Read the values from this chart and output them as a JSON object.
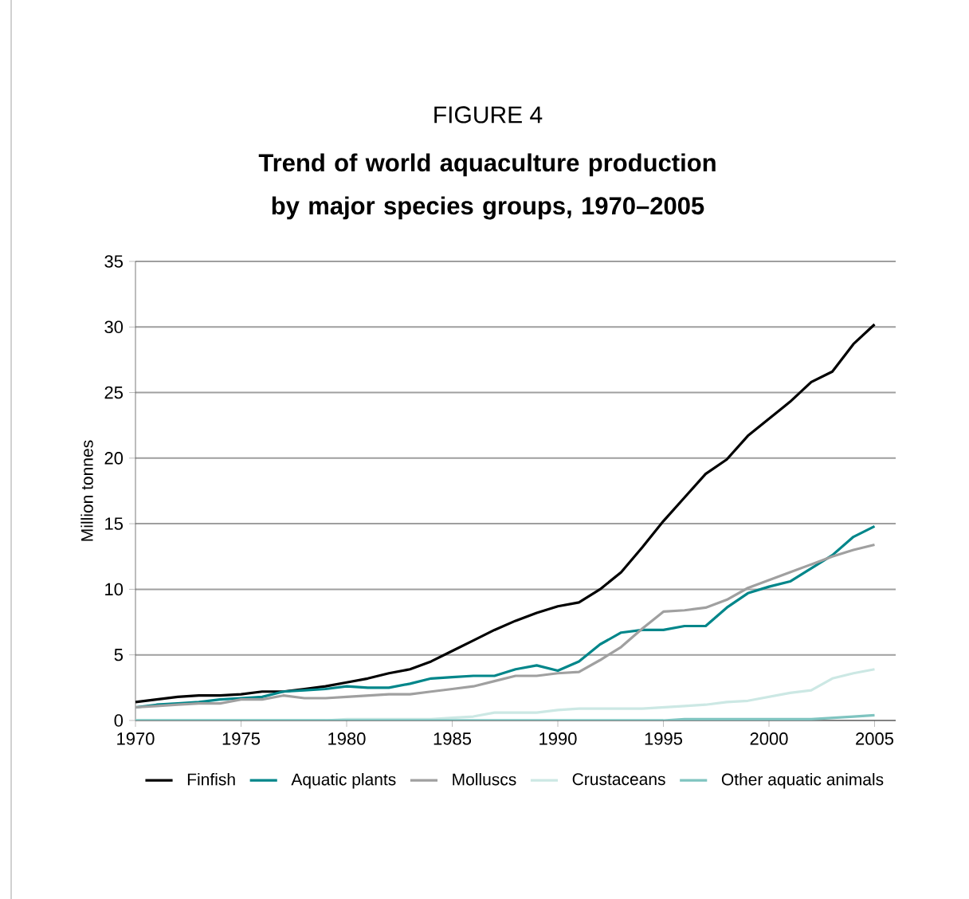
{
  "chart_data": {
    "type": "line",
    "title": "FIGURE 4",
    "subtitle": "**Trend of world aquaculture production by major species groups, 1970–2005**",
    "ylabel": "Million tonnes",
    "x": [
      1970,
      1971,
      1972,
      1973,
      1974,
      1975,
      1976,
      1977,
      1978,
      1979,
      1980,
      1981,
      1982,
      1983,
      1984,
      1985,
      1986,
      1987,
      1988,
      1989,
      1990,
      1991,
      1992,
      1993,
      1994,
      1995,
      1996,
      1997,
      1998,
      1999,
      2000,
      2001,
      2002,
      2003,
      2004,
      2005
    ],
    "xlim": [
      1970,
      2006
    ],
    "xticks": [
      1970,
      1975,
      1980,
      1985,
      1990,
      1995,
      2000,
      2005
    ],
    "ylim": [
      0,
      35
    ],
    "yticks": [
      0,
      5,
      10,
      15,
      20,
      25,
      30,
      35
    ],
    "grid": "y",
    "legend": "bottom",
    "marker": "none",
    "line_style": "solid",
    "series": [
      {
        "name": "Finfish",
        "color": "#000000",
        "values": [
          1.4,
          1.6,
          1.8,
          1.9,
          1.9,
          2.0,
          2.2,
          2.2,
          2.4,
          2.6,
          2.9,
          3.2,
          3.6,
          3.9,
          4.5,
          5.3,
          6.1,
          6.9,
          7.6,
          8.2,
          8.7,
          9.0,
          10.0,
          11.3,
          13.2,
          15.2,
          17.0,
          18.8,
          19.9,
          21.7,
          23.0,
          24.3,
          25.8,
          26.6,
          28.7,
          30.2
        ]
      },
      {
        "name": "Aquatic plants",
        "color": "#00868a",
        "values": [
          1.0,
          1.2,
          1.3,
          1.4,
          1.6,
          1.7,
          1.8,
          2.2,
          2.3,
          2.4,
          2.6,
          2.5,
          2.5,
          2.8,
          3.2,
          3.3,
          3.4,
          3.4,
          3.9,
          4.2,
          3.8,
          4.5,
          5.8,
          6.7,
          6.9,
          6.9,
          7.2,
          7.2,
          8.6,
          9.7,
          10.2,
          10.6,
          11.6,
          12.6,
          14.0,
          14.8
        ]
      },
      {
        "name": "Molluscs",
        "color": "#a0a0a0",
        "values": [
          1.0,
          1.1,
          1.2,
          1.3,
          1.3,
          1.6,
          1.6,
          1.9,
          1.7,
          1.7,
          1.8,
          1.9,
          2.0,
          2.0,
          2.2,
          2.4,
          2.6,
          3.0,
          3.4,
          3.4,
          3.6,
          3.7,
          4.6,
          5.6,
          7.0,
          8.3,
          8.4,
          8.6,
          9.2,
          10.1,
          10.7,
          11.3,
          11.9,
          12.5,
          13.0,
          13.4
        ]
      },
      {
        "name": "Crustaceans",
        "color": "#cce8e4",
        "values": [
          0.0,
          0.0,
          0.0,
          0.0,
          0.0,
          0.0,
          0.0,
          0.0,
          0.0,
          0.0,
          0.1,
          0.1,
          0.1,
          0.1,
          0.1,
          0.2,
          0.3,
          0.6,
          0.6,
          0.6,
          0.8,
          0.9,
          0.9,
          0.9,
          0.9,
          1.0,
          1.1,
          1.2,
          1.4,
          1.5,
          1.8,
          2.1,
          2.3,
          3.2,
          3.6,
          3.9
        ]
      },
      {
        "name": "Other aquatic animals",
        "color": "#7fc4c0",
        "values": [
          0.0,
          0.0,
          0.0,
          0.0,
          0.0,
          0.0,
          0.0,
          0.0,
          0.0,
          0.0,
          0.0,
          0.0,
          0.0,
          0.0,
          0.0,
          0.0,
          0.0,
          0.0,
          0.0,
          0.0,
          0.0,
          0.0,
          0.0,
          0.0,
          0.0,
          0.0,
          0.1,
          0.1,
          0.1,
          0.1,
          0.1,
          0.1,
          0.1,
          0.2,
          0.3,
          0.4
        ]
      }
    ]
  }
}
